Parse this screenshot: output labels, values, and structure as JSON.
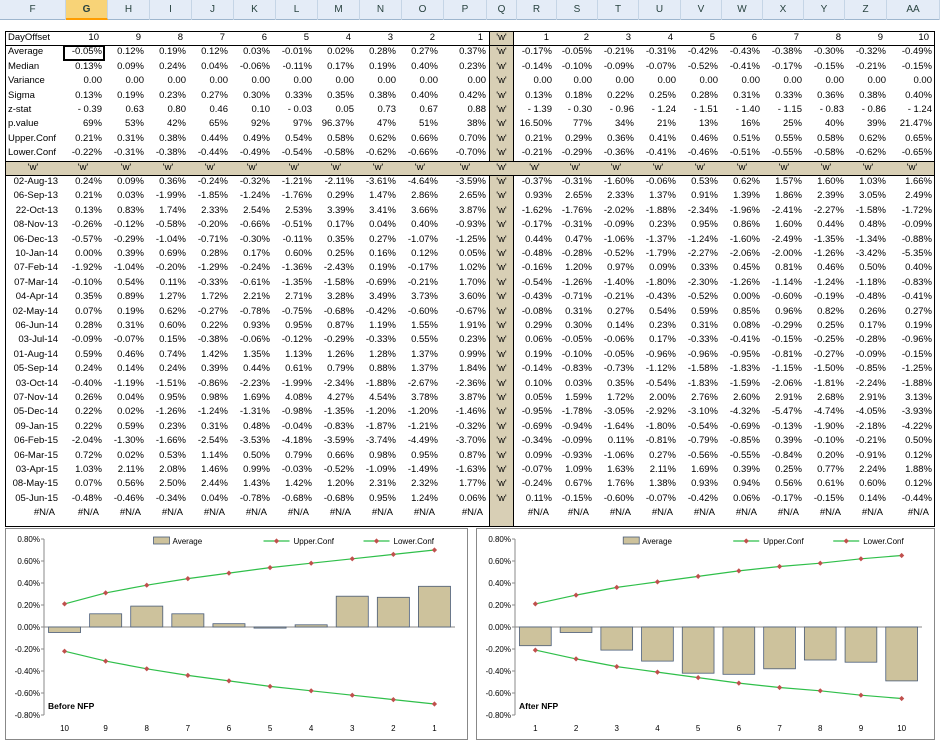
{
  "columns": [
    "F",
    "G",
    "H",
    "I",
    "J",
    "K",
    "L",
    "M",
    "N",
    "O",
    "P",
    "Q",
    "R",
    "S",
    "T",
    "U",
    "V",
    "W",
    "X",
    "Y",
    "Z",
    "AA"
  ],
  "selected_column": "G",
  "header_row": {
    "label": "DayOffset",
    "before": [
      "10",
      "9",
      "8",
      "7",
      "6",
      "5",
      "4",
      "3",
      "2",
      "1"
    ],
    "marker": "'w'",
    "after": [
      "1",
      "2",
      "3",
      "4",
      "5",
      "6",
      "7",
      "8",
      "9",
      "10"
    ]
  },
  "stats": [
    {
      "label": "Average",
      "before": [
        "-0.05%",
        "0.12%",
        "0.19%",
        "0.12%",
        "0.03%",
        "-0.01%",
        "0.02%",
        "0.28%",
        "0.27%",
        "0.37%"
      ],
      "marker": "'w'",
      "after": [
        "-0.17%",
        "-0.05%",
        "-0.21%",
        "-0.31%",
        "-0.42%",
        "-0.43%",
        "-0.38%",
        "-0.30%",
        "-0.32%",
        "-0.49%"
      ]
    },
    {
      "label": "Median",
      "before": [
        "0.13%",
        "0.09%",
        "0.24%",
        "0.04%",
        "-0.06%",
        "-0.11%",
        "0.17%",
        "0.19%",
        "0.40%",
        "0.23%"
      ],
      "marker": "'w'",
      "after": [
        "-0.14%",
        "-0.10%",
        "-0.09%",
        "-0.07%",
        "-0.52%",
        "-0.41%",
        "-0.17%",
        "-0.15%",
        "-0.21%",
        "-0.15%"
      ]
    },
    {
      "label": "Variance",
      "before": [
        "0.00",
        "0.00",
        "0.00",
        "0.00",
        "0.00",
        "0.00",
        "0.00",
        "0.00",
        "0.00",
        "0.00"
      ],
      "marker": "'w'",
      "after": [
        "0.00",
        "0.00",
        "0.00",
        "0.00",
        "0.00",
        "0.00",
        "0.00",
        "0.00",
        "0.00",
        "0.00"
      ]
    },
    {
      "label": "Sigma",
      "before": [
        "0.13%",
        "0.19%",
        "0.23%",
        "0.27%",
        "0.30%",
        "0.33%",
        "0.35%",
        "0.38%",
        "0.40%",
        "0.42%"
      ],
      "marker": "'w'",
      "after": [
        "0.13%",
        "0.18%",
        "0.22%",
        "0.25%",
        "0.28%",
        "0.31%",
        "0.33%",
        "0.36%",
        "0.38%",
        "0.40%"
      ]
    },
    {
      "label": "z-stat",
      "before": [
        "- 0.39",
        "0.63",
        "0.80",
        "0.46",
        "0.10",
        "- 0.03",
        "0.05",
        "0.73",
        "0.67",
        "0.88"
      ],
      "marker": "'w'",
      "after": [
        "- 1.39",
        "- 0.30",
        "- 0.96",
        "- 1.24",
        "- 1.51",
        "- 1.40",
        "- 1.15",
        "- 0.83",
        "- 0.86",
        "- 1.24"
      ]
    },
    {
      "label": "p.value",
      "before": [
        "69%",
        "53%",
        "42%",
        "65%",
        "92%",
        "97%",
        "96.37%",
        "47%",
        "51%",
        "38%"
      ],
      "marker": "'w'",
      "after": [
        "16.50%",
        "77%",
        "34%",
        "21%",
        "13%",
        "16%",
        "25%",
        "40%",
        "39%",
        "21.47%"
      ]
    },
    {
      "label": "Upper.Conf",
      "before": [
        "0.21%",
        "0.31%",
        "0.38%",
        "0.44%",
        "0.49%",
        "0.54%",
        "0.58%",
        "0.62%",
        "0.66%",
        "0.70%"
      ],
      "marker": "'w'",
      "after": [
        "0.21%",
        "0.29%",
        "0.36%",
        "0.41%",
        "0.46%",
        "0.51%",
        "0.55%",
        "0.58%",
        "0.62%",
        "0.65%"
      ]
    },
    {
      "label": "Lower.Conf",
      "before": [
        "-0.22%",
        "-0.31%",
        "-0.38%",
        "-0.44%",
        "-0.49%",
        "-0.54%",
        "-0.58%",
        "-0.62%",
        "-0.66%",
        "-0.70%"
      ],
      "marker": "'w'",
      "after": [
        "-0.21%",
        "-0.29%",
        "-0.36%",
        "-0.41%",
        "-0.46%",
        "-0.51%",
        "-0.55%",
        "-0.58%",
        "-0.62%",
        "-0.65%"
      ]
    }
  ],
  "marker_row": [
    "'w'",
    "'w'",
    "'w'",
    "'w'",
    "'w'",
    "'w'",
    "'w'",
    "'w'",
    "'w'",
    "'w'",
    "'w'",
    "'w'",
    "'w'",
    "'w'",
    "'w'",
    "'w'",
    "'w'",
    "'w'",
    "'w'",
    "'w'",
    "'w'",
    "'w'"
  ],
  "data_rows": [
    {
      "date": "02-Aug-13",
      "before": [
        "0.24%",
        "0.09%",
        "0.36%",
        "-0.24%",
        "-0.32%",
        "-1.21%",
        "-2.11%",
        "-3.61%",
        "-4.64%",
        "-3.59%"
      ],
      "marker": "'w'",
      "after": [
        "-0.37%",
        "-0.31%",
        "-1.60%",
        "-0.06%",
        "0.53%",
        "0.62%",
        "1.57%",
        "1.60%",
        "1.03%",
        "1.66%"
      ]
    },
    {
      "date": "06-Sep-13",
      "before": [
        "0.21%",
        "0.03%",
        "-1.99%",
        "-1.85%",
        "-1.24%",
        "-1.76%",
        "0.29%",
        "1.47%",
        "2.86%",
        "2.65%"
      ],
      "marker": "'w'",
      "after": [
        "0.93%",
        "2.65%",
        "2.33%",
        "1.37%",
        "0.91%",
        "1.39%",
        "1.86%",
        "2.39%",
        "3.05%",
        "2.49%"
      ]
    },
    {
      "date": "22-Oct-13",
      "before": [
        "0.13%",
        "0.83%",
        "1.74%",
        "2.33%",
        "2.54%",
        "2.53%",
        "3.39%",
        "3.41%",
        "3.66%",
        "3.87%"
      ],
      "marker": "'w'",
      "after": [
        "-1.62%",
        "-1.76%",
        "-2.02%",
        "-1.88%",
        "-2.34%",
        "-1.96%",
        "-2.41%",
        "-2.27%",
        "-1.58%",
        "-1.72%"
      ]
    },
    {
      "date": "08-Nov-13",
      "before": [
        "-0.26%",
        "-0.12%",
        "-0.58%",
        "-0.20%",
        "-0.66%",
        "-0.51%",
        "0.17%",
        "0.04%",
        "0.40%",
        "-0.93%"
      ],
      "marker": "'w'",
      "after": [
        "-0.17%",
        "-0.31%",
        "-0.09%",
        "0.23%",
        "0.95%",
        "0.86%",
        "1.60%",
        "0.44%",
        "0.48%",
        "-0.09%"
      ]
    },
    {
      "date": "06-Dec-13",
      "before": [
        "-0.57%",
        "-0.29%",
        "-1.04%",
        "-0.71%",
        "-0.30%",
        "-0.11%",
        "0.35%",
        "0.27%",
        "-1.07%",
        "-1.25%"
      ],
      "marker": "'w'",
      "after": [
        "0.44%",
        "0.47%",
        "-1.06%",
        "-1.37%",
        "-1.24%",
        "-1.60%",
        "-2.49%",
        "-1.35%",
        "-1.34%",
        "-0.88%"
      ]
    },
    {
      "date": "10-Jan-14",
      "before": [
        "0.00%",
        "0.39%",
        "0.69%",
        "0.28%",
        "0.17%",
        "0.60%",
        "0.25%",
        "0.16%",
        "0.12%",
        "0.05%"
      ],
      "marker": "'w'",
      "after": [
        "-0.48%",
        "-0.28%",
        "-0.52%",
        "-1.79%",
        "-2.27%",
        "-2.06%",
        "-2.00%",
        "-1.26%",
        "-3.42%",
        "-5.35%"
      ]
    },
    {
      "date": "07-Feb-14",
      "before": [
        "-1.92%",
        "-1.04%",
        "-0.20%",
        "-1.29%",
        "-0.24%",
        "-1.36%",
        "-2.43%",
        "0.19%",
        "-0.17%",
        "1.02%"
      ],
      "marker": "'w'",
      "after": [
        "-0.16%",
        "1.20%",
        "0.97%",
        "0.09%",
        "0.33%",
        "0.45%",
        "0.81%",
        "0.46%",
        "0.50%",
        "0.40%"
      ]
    },
    {
      "date": "07-Mar-14",
      "before": [
        "-0.10%",
        "0.54%",
        "0.11%",
        "-0.33%",
        "-0.61%",
        "-1.35%",
        "-1.58%",
        "-0.69%",
        "-0.21%",
        "1.70%"
      ],
      "marker": "'w'",
      "after": [
        "-0.54%",
        "-1.26%",
        "-1.40%",
        "-1.80%",
        "-2.30%",
        "-1.26%",
        "-1.14%",
        "-1.24%",
        "-1.18%",
        "-0.83%"
      ]
    },
    {
      "date": "04-Apr-14",
      "before": [
        "0.35%",
        "0.89%",
        "1.27%",
        "1.72%",
        "2.21%",
        "2.71%",
        "3.28%",
        "3.49%",
        "3.73%",
        "3.60%"
      ],
      "marker": "'w'",
      "after": [
        "-0.43%",
        "-0.71%",
        "-0.21%",
        "-0.43%",
        "-0.52%",
        "0.00%",
        "-0.60%",
        "-0.19%",
        "-0.48%",
        "-0.41%"
      ]
    },
    {
      "date": "02-May-14",
      "before": [
        "0.07%",
        "0.19%",
        "0.62%",
        "-0.27%",
        "-0.78%",
        "-0.75%",
        "-0.68%",
        "-0.42%",
        "-0.60%",
        "-0.67%"
      ],
      "marker": "'w'",
      "after": [
        "-0.08%",
        "0.31%",
        "0.27%",
        "0.54%",
        "0.59%",
        "0.85%",
        "0.96%",
        "0.82%",
        "0.26%",
        "0.27%"
      ]
    },
    {
      "date": "06-Jun-14",
      "before": [
        "0.28%",
        "0.31%",
        "0.60%",
        "0.22%",
        "0.93%",
        "0.95%",
        "0.87%",
        "1.19%",
        "1.55%",
        "1.91%"
      ],
      "marker": "'w'",
      "after": [
        "0.29%",
        "0.30%",
        "0.14%",
        "0.23%",
        "0.31%",
        "0.08%",
        "-0.29%",
        "0.25%",
        "0.17%",
        "0.19%"
      ]
    },
    {
      "date": "03-Jul-14",
      "before": [
        "-0.09%",
        "-0.07%",
        "0.15%",
        "-0.38%",
        "-0.06%",
        "-0.12%",
        "-0.29%",
        "-0.33%",
        "0.55%",
        "0.23%"
      ],
      "marker": "'w'",
      "after": [
        "0.06%",
        "-0.05%",
        "-0.06%",
        "0.17%",
        "-0.33%",
        "-0.41%",
        "-0.15%",
        "-0.25%",
        "-0.28%",
        "-0.96%"
      ]
    },
    {
      "date": "01-Aug-14",
      "before": [
        "0.59%",
        "0.46%",
        "0.74%",
        "1.42%",
        "1.35%",
        "1.13%",
        "1.26%",
        "1.28%",
        "1.37%",
        "0.99%"
      ],
      "marker": "'w'",
      "after": [
        "0.19%",
        "-0.10%",
        "-0.05%",
        "-0.96%",
        "-0.96%",
        "-0.95%",
        "-0.81%",
        "-0.27%",
        "-0.09%",
        "-0.15%"
      ]
    },
    {
      "date": "05-Sep-14",
      "before": [
        "0.24%",
        "0.14%",
        "0.24%",
        "0.39%",
        "0.44%",
        "0.61%",
        "0.79%",
        "0.88%",
        "1.37%",
        "1.84%"
      ],
      "marker": "'w'",
      "after": [
        "-0.14%",
        "-0.83%",
        "-0.73%",
        "-1.12%",
        "-1.58%",
        "-1.83%",
        "-1.15%",
        "-1.50%",
        "-0.85%",
        "-1.25%"
      ]
    },
    {
      "date": "03-Oct-14",
      "before": [
        "-0.40%",
        "-1.19%",
        "-1.51%",
        "-0.86%",
        "-2.23%",
        "-1.99%",
        "-2.34%",
        "-1.88%",
        "-2.67%",
        "-2.36%"
      ],
      "marker": "'w'",
      "after": [
        "0.10%",
        "0.03%",
        "0.35%",
        "-0.54%",
        "-1.83%",
        "-1.59%",
        "-2.06%",
        "-1.81%",
        "-2.24%",
        "-1.88%"
      ]
    },
    {
      "date": "07-Nov-14",
      "before": [
        "0.26%",
        "0.04%",
        "0.95%",
        "0.98%",
        "1.69%",
        "4.08%",
        "4.27%",
        "4.54%",
        "3.78%",
        "3.87%"
      ],
      "marker": "'w'",
      "after": [
        "0.05%",
        "1.59%",
        "1.72%",
        "2.00%",
        "2.76%",
        "2.60%",
        "2.91%",
        "2.68%",
        "2.91%",
        "3.13%"
      ]
    },
    {
      "date": "05-Dec-14",
      "before": [
        "0.22%",
        "0.02%",
        "-1.26%",
        "-1.24%",
        "-1.31%",
        "-0.98%",
        "-1.35%",
        "-1.20%",
        "-1.20%",
        "-1.46%"
      ],
      "marker": "'w'",
      "after": [
        "-0.95%",
        "-1.78%",
        "-3.05%",
        "-2.92%",
        "-3.10%",
        "-4.32%",
        "-5.47%",
        "-4.74%",
        "-4.05%",
        "-3.93%"
      ]
    },
    {
      "date": "09-Jan-15",
      "before": [
        "0.22%",
        "0.59%",
        "0.23%",
        "0.31%",
        "0.48%",
        "-0.04%",
        "-0.83%",
        "-1.87%",
        "-1.21%",
        "-0.32%"
      ],
      "marker": "'w'",
      "after": [
        "-0.69%",
        "-0.94%",
        "-1.64%",
        "-1.80%",
        "-0.54%",
        "-0.69%",
        "-0.13%",
        "-1.90%",
        "-2.18%",
        "-4.22%"
      ]
    },
    {
      "date": "06-Feb-15",
      "before": [
        "-2.04%",
        "-1.30%",
        "-1.66%",
        "-2.54%",
        "-3.53%",
        "-4.18%",
        "-3.59%",
        "-3.74%",
        "-4.49%",
        "-3.70%"
      ],
      "marker": "'w'",
      "after": [
        "-0.34%",
        "-0.09%",
        "0.11%",
        "-0.81%",
        "-0.79%",
        "-0.85%",
        "0.39%",
        "-0.10%",
        "-0.21%",
        "0.50%"
      ]
    },
    {
      "date": "06-Mar-15",
      "before": [
        "0.72%",
        "0.02%",
        "0.53%",
        "1.14%",
        "0.50%",
        "0.79%",
        "0.66%",
        "0.98%",
        "0.95%",
        "0.87%"
      ],
      "marker": "'w'",
      "after": [
        "0.09%",
        "-0.93%",
        "-1.06%",
        "0.27%",
        "-0.56%",
        "-0.55%",
        "-0.84%",
        "0.20%",
        "-0.91%",
        "0.12%"
      ]
    },
    {
      "date": "03-Apr-15",
      "before": [
        "1.03%",
        "2.11%",
        "2.08%",
        "1.46%",
        "0.99%",
        "-0.03%",
        "-0.52%",
        "-1.09%",
        "-1.49%",
        "-1.63%"
      ],
      "marker": "'w'",
      "after": [
        "-0.07%",
        "1.09%",
        "1.63%",
        "2.11%",
        "1.69%",
        "0.39%",
        "0.25%",
        "0.77%",
        "2.24%",
        "1.88%"
      ]
    },
    {
      "date": "08-May-15",
      "before": [
        "0.07%",
        "0.56%",
        "2.50%",
        "2.44%",
        "1.43%",
        "1.42%",
        "1.20%",
        "2.31%",
        "2.32%",
        "1.77%"
      ],
      "marker": "'w'",
      "after": [
        "-0.24%",
        "0.67%",
        "1.76%",
        "1.38%",
        "0.93%",
        "0.94%",
        "0.56%",
        "0.61%",
        "0.60%",
        "0.12%"
      ]
    },
    {
      "date": "05-Jun-15",
      "before": [
        "-0.48%",
        "-0.46%",
        "-0.34%",
        "0.04%",
        "-0.78%",
        "-0.68%",
        "-0.68%",
        "0.95%",
        "1.24%",
        "0.06%"
      ],
      "marker": "'w'",
      "after": [
        "0.11%",
        "-0.15%",
        "-0.60%",
        "-0.07%",
        "-0.42%",
        "0.06%",
        "-0.17%",
        "-0.15%",
        "0.14%",
        "-0.44%"
      ]
    }
  ],
  "na_row": {
    "label": "#N/A",
    "before": [
      "#N/A",
      "#N/A",
      "#N/A",
      "#N/A",
      "#N/A",
      "#N/A",
      "#N/A",
      "#N/A",
      "#N/A",
      "#N/A"
    ],
    "after": [
      "#N/A",
      "#N/A",
      "#N/A",
      "#N/A",
      "#N/A",
      "#N/A",
      "#N/A",
      "#N/A",
      "#N/A",
      "#N/A"
    ]
  },
  "colors": {
    "bar_fill": "#cdc29c",
    "bar_stroke": "#4a5c78",
    "line": "#2fbf4a",
    "marker": "#c0504d",
    "marker_row_bg": "#d8cfb5"
  },
  "chart_data": [
    {
      "type": "bar",
      "title": "Before NFP",
      "categories": [
        "10",
        "9",
        "8",
        "7",
        "6",
        "5",
        "4",
        "3",
        "2",
        "1"
      ],
      "series": [
        {
          "name": "Average",
          "type": "bar",
          "values": [
            -0.0005,
            0.0012,
            0.0019,
            0.0012,
            0.0003,
            -0.0001,
            0.0002,
            0.0028,
            0.0027,
            0.0037
          ]
        },
        {
          "name": "Upper.Conf",
          "type": "line",
          "values": [
            0.0021,
            0.0031,
            0.0038,
            0.0044,
            0.0049,
            0.0054,
            0.0058,
            0.0062,
            0.0066,
            0.007
          ]
        },
        {
          "name": "Lower.Conf",
          "type": "line",
          "values": [
            -0.0022,
            -0.0031,
            -0.0038,
            -0.0044,
            -0.0049,
            -0.0054,
            -0.0058,
            -0.0062,
            -0.0066,
            -0.007
          ]
        }
      ],
      "ylim": [
        -0.008,
        0.008
      ],
      "yticks": [
        "0.80%",
        "0.60%",
        "0.40%",
        "0.20%",
        "0.00%",
        "-0.20%",
        "-0.40%",
        "-0.60%",
        "-0.80%"
      ],
      "legend": "top"
    },
    {
      "type": "bar",
      "title": "After NFP",
      "categories": [
        "1",
        "2",
        "3",
        "4",
        "5",
        "6",
        "7",
        "8",
        "9",
        "10"
      ],
      "series": [
        {
          "name": "Average",
          "type": "bar",
          "values": [
            -0.0017,
            -0.0005,
            -0.0021,
            -0.0031,
            -0.0042,
            -0.0043,
            -0.0038,
            -0.003,
            -0.0032,
            -0.0049
          ]
        },
        {
          "name": "Upper.Conf",
          "type": "line",
          "values": [
            0.0021,
            0.0029,
            0.0036,
            0.0041,
            0.0046,
            0.0051,
            0.0055,
            0.0058,
            0.0062,
            0.0065
          ]
        },
        {
          "name": "Lower.Conf",
          "type": "line",
          "values": [
            -0.0021,
            -0.0029,
            -0.0036,
            -0.0041,
            -0.0046,
            -0.0051,
            -0.0055,
            -0.0058,
            -0.0062,
            -0.0065
          ]
        }
      ],
      "ylim": [
        -0.008,
        0.008
      ],
      "yticks": [
        "0.80%",
        "0.60%",
        "0.40%",
        "0.20%",
        "0.00%",
        "-0.20%",
        "-0.40%",
        "-0.60%",
        "-0.80%"
      ],
      "legend": "top"
    }
  ]
}
